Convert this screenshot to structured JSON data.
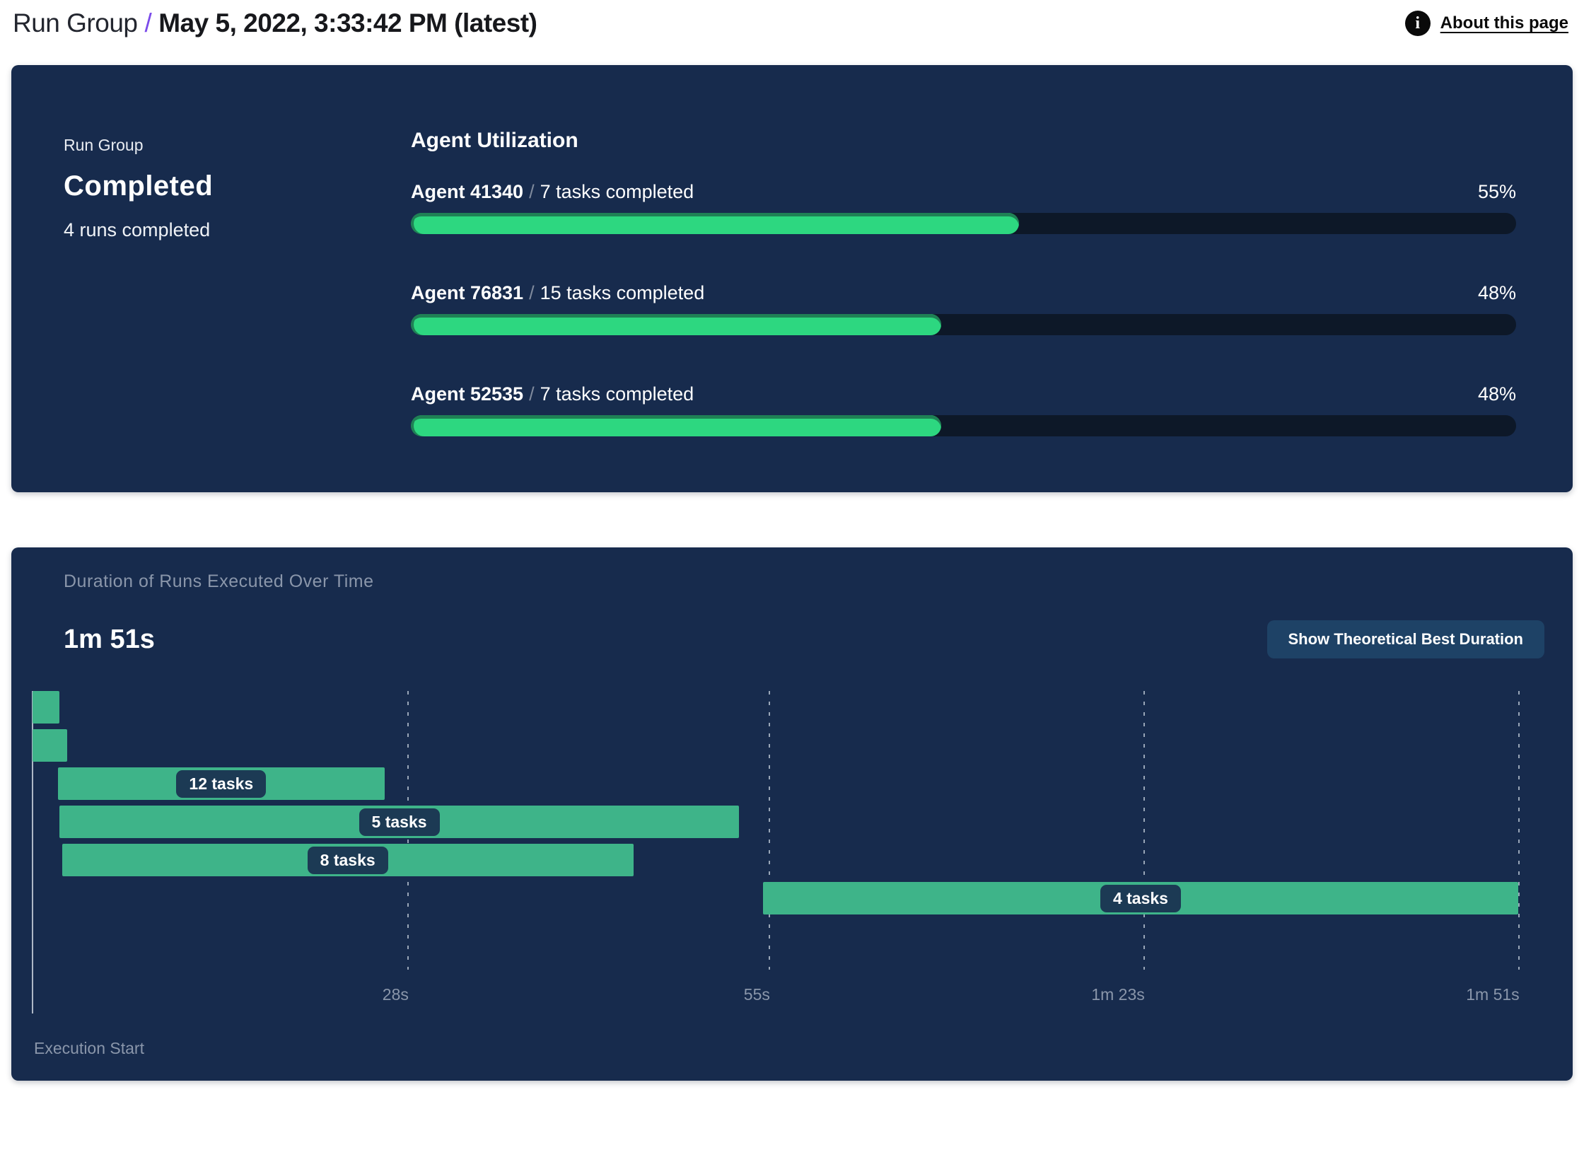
{
  "header": {
    "breadcrumb_root": "Run Group",
    "separator": "/",
    "title": "May 5, 2022, 3:33:42 PM (latest)",
    "about_link": "About this page",
    "info_icon_glyph": "i"
  },
  "status_card": {
    "label": "Run Group",
    "status": "Completed",
    "subtext": "4 runs completed",
    "utilization": {
      "heading": "Agent Utilization",
      "separator": "/",
      "agents": [
        {
          "name": "Agent 41340",
          "tasks": "7 tasks completed",
          "percent": 55,
          "percent_label": "55%"
        },
        {
          "name": "Agent 76831",
          "tasks": "15 tasks completed",
          "percent": 48,
          "percent_label": "48%"
        },
        {
          "name": "Agent 52535",
          "tasks": "7 tasks completed",
          "percent": 48,
          "percent_label": "48%"
        }
      ]
    }
  },
  "duration_card": {
    "title": "Duration of Runs Executed Over Time",
    "total_duration": "1m 51s",
    "button_label": "Show Theoretical Best Duration",
    "execution_start_label": "Execution Start"
  },
  "chart_data": {
    "type": "gantt",
    "title": "Duration of Runs Executed Over Time",
    "total_duration_label": "1m 51s",
    "time_axis": {
      "total_seconds": 113.5,
      "ticks": [
        {
          "label": "28s",
          "seconds": 28
        },
        {
          "label": "55s",
          "seconds": 55
        },
        {
          "label": "1m 23s",
          "seconds": 83
        },
        {
          "label": "1m 51s",
          "seconds": 111
        }
      ]
    },
    "runs": [
      {
        "label": "",
        "start_s": 0,
        "end_s": 2.0
      },
      {
        "label": "",
        "start_s": 0,
        "end_s": 2.6
      },
      {
        "label": "12 tasks",
        "start_s": 1.9,
        "end_s": 26.3
      },
      {
        "label": "5 tasks",
        "start_s": 2.0,
        "end_s": 52.8
      },
      {
        "label": "8 tasks",
        "start_s": 2.2,
        "end_s": 44.9
      },
      {
        "label": "4 tasks",
        "start_s": 54.6,
        "end_s": 111.0
      }
    ],
    "layout": {
      "grid": "vertical-dashed",
      "legend": "none",
      "x_origin_label": "Execution Start"
    },
    "colors": {
      "accent_purple": "#7B4BEA",
      "card_bg": "#172B4D",
      "gantt_bar": "#3EB489",
      "label_pill_bg": "#1C3A54",
      "progress_fill": "#2DD780",
      "progress_fill_shade": "#1F8155",
      "progress_track": "#0D1828",
      "button_bg": "#1E4266",
      "muted_text": "#8A96AA"
    }
  }
}
